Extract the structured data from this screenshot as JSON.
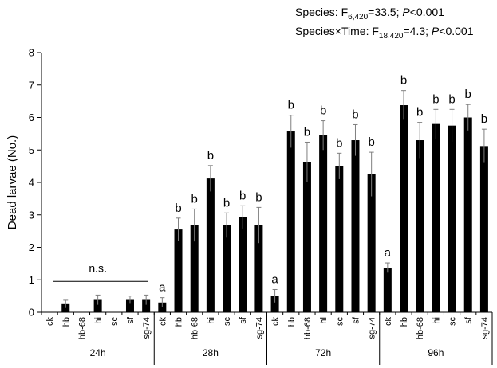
{
  "chart_data": {
    "type": "bar",
    "ylabel": "Dead larvae (No.)",
    "ylim": [
      0,
      8
    ],
    "yticks": [
      "0",
      "1",
      "2",
      "3",
      "4",
      "5",
      "6",
      "7",
      "8"
    ],
    "categories": [
      "ck",
      "hb",
      "hb-68",
      "hi",
      "sc",
      "sf",
      "sg-74"
    ],
    "groups": [
      {
        "label": "24h",
        "values": [
          0,
          0.25,
          0,
          0.38,
          0,
          0.38,
          0.38
        ],
        "errors": [
          0,
          0.12,
          0,
          0.15,
          0,
          0.12,
          0.15
        ],
        "letters": [
          "",
          "",
          "",
          "",
          "",
          "",
          ""
        ]
      },
      {
        "label": "28h",
        "values": [
          0.3,
          2.55,
          2.68,
          4.12,
          2.68,
          2.93,
          2.68
        ],
        "errors": [
          0.15,
          0.35,
          0.5,
          0.4,
          0.38,
          0.35,
          0.55
        ],
        "letters": [
          "a",
          "b",
          "b",
          "b",
          "b",
          "b",
          "b"
        ]
      },
      {
        "label": "72h",
        "values": [
          0.5,
          5.57,
          4.62,
          5.45,
          4.5,
          5.3,
          4.25
        ],
        "errors": [
          0.2,
          0.5,
          0.62,
          0.45,
          0.4,
          0.48,
          0.68
        ],
        "letters": [
          "a",
          "b",
          "b",
          "b",
          "b",
          "b",
          "b"
        ]
      },
      {
        "label": "96h",
        "values": [
          1.37,
          6.38,
          5.3,
          5.8,
          5.75,
          6.0,
          5.12
        ],
        "errors": [
          0.15,
          0.45,
          0.55,
          0.45,
          0.5,
          0.4,
          0.52
        ],
        "letters": [
          "a",
          "b",
          "b",
          "b",
          "b",
          "b",
          "b"
        ]
      }
    ],
    "ns_label": "n.s.",
    "stats": {
      "line1": {
        "prefix": "Species: F",
        "sub": "6,420",
        "mid": "=33.5; ",
        "p": "P",
        "suffix": "<0.001"
      },
      "line2": {
        "prefix": "Species×Time: F",
        "sub": "18,420",
        "mid": "=4.3; ",
        "p": "P",
        "suffix": "<0.001"
      }
    },
    "bar_color": "#000000",
    "grid": false,
    "legend": "none"
  }
}
